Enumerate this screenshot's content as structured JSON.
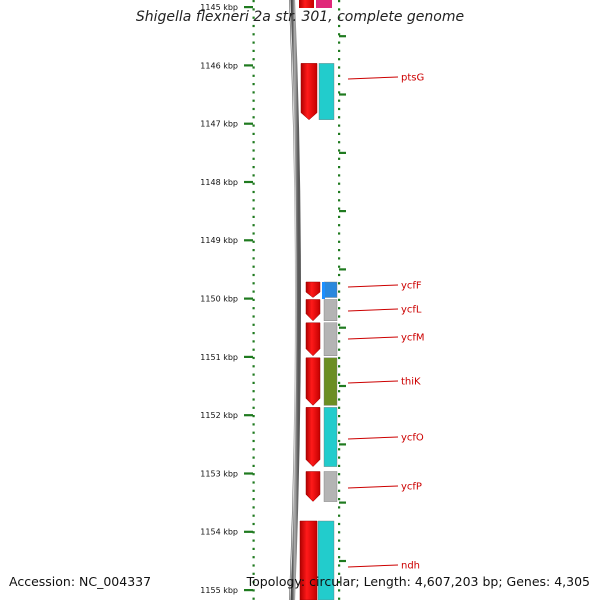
{
  "title": "Shigella flexneri 2a str. 301, complete genome",
  "footer": {
    "accession": "Accession: NC_004337",
    "topology": "Topology: circular; Length: 4,607,203 bp; Genes: 4,305"
  },
  "ruler": {
    "unit": "kbp",
    "ticks": [
      {
        "kbp": 1145,
        "label": "1145 kbp"
      },
      {
        "kbp": 1146,
        "label": "1146 kbp"
      },
      {
        "kbp": 1147,
        "label": "1147 kbp"
      },
      {
        "kbp": 1148,
        "label": "1148 kbp"
      },
      {
        "kbp": 1149,
        "label": "1149 kbp"
      },
      {
        "kbp": 1150,
        "label": "1150 kbp"
      },
      {
        "kbp": 1151,
        "label": "1151 kbp"
      },
      {
        "kbp": 1152,
        "label": "1152 kbp"
      },
      {
        "kbp": 1153,
        "label": "1153 kbp"
      },
      {
        "kbp": 1154,
        "label": "1154 kbp"
      },
      {
        "kbp": 1155,
        "label": "1155 kbp"
      }
    ]
  },
  "colors": {
    "backbone": "#808080",
    "gene_strand": "#ee0000",
    "tick_green": "#1f7a1f",
    "label_red": "#cc0000",
    "cyan": "#22cccc",
    "gray": "#b4b4b4",
    "olive": "#6b8e23",
    "blue": "#2a88dd",
    "magenta": "#e0287a"
  },
  "genes": [
    {
      "name": "ptsG",
      "start_kbp": 1145.95,
      "end_kbp": 1146.95,
      "category_color": "#22cccc"
    },
    {
      "name": "ycfF",
      "start_kbp": 1149.7,
      "end_kbp": 1150.0,
      "category_color": "#2a88dd"
    },
    {
      "name": "ycfL",
      "start_kbp": 1150.0,
      "end_kbp": 1150.4,
      "category_color": "#b4b4b4"
    },
    {
      "name": "ycfM",
      "start_kbp": 1150.4,
      "end_kbp": 1151.0,
      "category_color": "#b4b4b4"
    },
    {
      "name": "thiK",
      "start_kbp": 1151.0,
      "end_kbp": 1151.85,
      "category_color": "#6b8e23"
    },
    {
      "name": "ycfO",
      "start_kbp": 1151.85,
      "end_kbp": 1152.9,
      "category_color": "#22cccc"
    },
    {
      "name": "ycfP",
      "start_kbp": 1152.95,
      "end_kbp": 1153.5,
      "category_color": "#b4b4b4"
    },
    {
      "name": "ndh",
      "start_kbp": 1153.8,
      "end_kbp": 1155.2,
      "category_color": "#22cccc"
    }
  ]
}
